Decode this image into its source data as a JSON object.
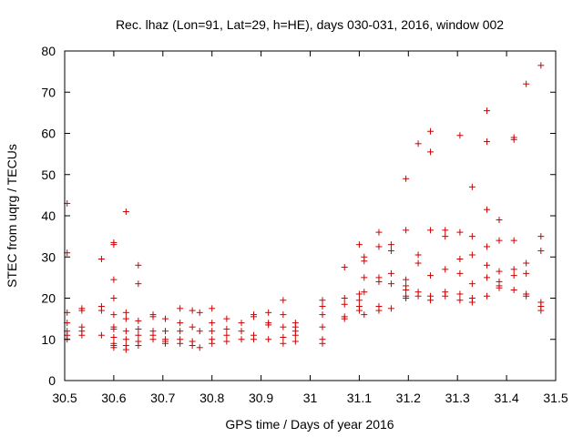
{
  "chart_data": {
    "type": "scatter",
    "title": "Rec. lhaz (Lon=91, Lat=29, h=HE), days 030-031, 2016, window 002",
    "xlabel": "GPS time / Days of year 2016",
    "ylabel": "STEC from uqrg / TECUs",
    "xlim": [
      30.5,
      31.5
    ],
    "ylim": [
      0,
      80
    ],
    "xticks": [
      "30.5",
      "30.6",
      "30.7",
      "30.8",
      "30.9",
      "31",
      "31.1",
      "31.2",
      "31.3",
      "31.4",
      "31.5"
    ],
    "yticks": [
      "0",
      "10",
      "20",
      "30",
      "40",
      "50",
      "60",
      "70",
      "80"
    ],
    "grid": false,
    "legend": "none",
    "marker": "plus",
    "color": "#cc0000",
    "series": [
      {
        "x": [
          30.505,
          30.505,
          30.505,
          30.505,
          30.505,
          30.505,
          30.505,
          30.535,
          30.535,
          30.535,
          30.535,
          30.535,
          30.575,
          30.575,
          30.575,
          30.575,
          30.6,
          30.6,
          30.6,
          30.6,
          30.6,
          30.6,
          30.6,
          30.6,
          30.6,
          30.6,
          30.6,
          30.625,
          30.625,
          30.625,
          30.625,
          30.625,
          30.625,
          30.625,
          30.65,
          30.65,
          30.65,
          30.65,
          30.65,
          30.65,
          30.65,
          30.68,
          30.68,
          30.68,
          30.68,
          30.68,
          30.705,
          30.705,
          30.705,
          30.705,
          30.705,
          30.735,
          30.735,
          30.735,
          30.735,
          30.735,
          30.76,
          30.76,
          30.76,
          30.76,
          30.775,
          30.775,
          30.775,
          30.8,
          30.8,
          30.8,
          30.8,
          30.8,
          30.83,
          30.83,
          30.83,
          30.83,
          30.86,
          30.86,
          30.86,
          30.885,
          30.885,
          30.885,
          30.885,
          30.915,
          30.915,
          30.915,
          30.915,
          30.945,
          30.945,
          30.945,
          30.945,
          30.945,
          30.97,
          30.97,
          30.97,
          30.97,
          30.97,
          31.025,
          31.025,
          31.025,
          31.025,
          31.025,
          31.025,
          31.07,
          31.07,
          31.07,
          31.07,
          31.07,
          31.1,
          31.1,
          31.1,
          31.1,
          31.1,
          31.11,
          31.11,
          31.11,
          31.11,
          31.11,
          31.14,
          31.14,
          31.14,
          31.14,
          31.14,
          31.14,
          31.165,
          31.165,
          31.165,
          31.165,
          31.165,
          31.195,
          31.195,
          31.195,
          31.195,
          31.195,
          31.195,
          31.195,
          31.22,
          31.22,
          31.22,
          31.22,
          31.22,
          31.245,
          31.245,
          31.245,
          31.245,
          31.245,
          31.245,
          31.275,
          31.275,
          31.275,
          31.275,
          31.275,
          31.305,
          31.305,
          31.305,
          31.305,
          31.305,
          31.305,
          31.33,
          31.33,
          31.33,
          31.33,
          31.33,
          31.33,
          31.36,
          31.36,
          31.36,
          31.36,
          31.36,
          31.36,
          31.36,
          31.385,
          31.385,
          31.385,
          31.385,
          31.385,
          31.385,
          31.415,
          31.415,
          31.415,
          31.415,
          31.415,
          31.415,
          31.44,
          31.44,
          31.44,
          31.44,
          31.44,
          31.47,
          31.47,
          31.47,
          31.47,
          31.47,
          31.47
        ],
        "y": [
          43,
          31,
          16.5,
          14,
          12,
          11,
          10,
          17.5,
          17,
          13,
          12,
          11,
          29.5,
          18,
          17,
          11,
          33.5,
          33,
          24.5,
          20,
          16,
          13,
          12.5,
          10.5,
          9,
          8.5,
          8,
          41,
          16.5,
          15,
          12,
          10,
          8.5,
          7.5,
          28,
          23.5,
          14.5,
          12.5,
          11,
          9.5,
          8.5,
          16,
          15.5,
          12,
          11,
          10,
          15,
          12,
          10,
          9.5,
          9,
          17.5,
          14,
          12,
          10,
          9,
          17,
          13,
          9.5,
          8.5,
          16.5,
          12,
          8,
          17.5,
          14,
          12,
          10,
          9,
          15,
          12.5,
          11,
          9.5,
          14,
          12,
          10,
          16,
          15.5,
          11,
          10,
          16.5,
          14,
          13.5,
          10,
          19.5,
          16,
          13,
          10.5,
          9,
          14,
          13,
          12,
          11,
          9.5,
          19.5,
          18,
          16,
          13,
          10,
          9,
          27.5,
          20,
          18.5,
          15.5,
          15,
          33,
          21,
          19.5,
          18,
          17,
          30,
          29,
          25,
          21.5,
          16,
          36,
          32.5,
          25,
          24,
          18,
          17,
          33,
          31.5,
          26,
          23.5,
          17.5,
          49,
          36.5,
          24.5,
          23,
          22,
          20.5,
          20,
          57.5,
          30.5,
          28.5,
          21.5,
          20.5,
          60.5,
          55.5,
          36.5,
          25.5,
          20.5,
          19.5,
          36.5,
          35,
          27,
          21.5,
          20.5,
          59.5,
          36,
          29.5,
          26,
          21,
          19.5,
          47,
          35,
          30.5,
          23.5,
          20,
          19,
          65.5,
          58,
          41.5,
          32.5,
          28,
          25,
          20.5,
          39,
          34,
          26.5,
          24,
          23,
          22.5,
          59,
          58.5,
          34,
          27,
          25.5,
          22,
          72,
          28.5,
          26,
          21,
          20.5,
          76.5,
          35,
          31.5,
          19,
          18,
          17
        ]
      }
    ]
  }
}
